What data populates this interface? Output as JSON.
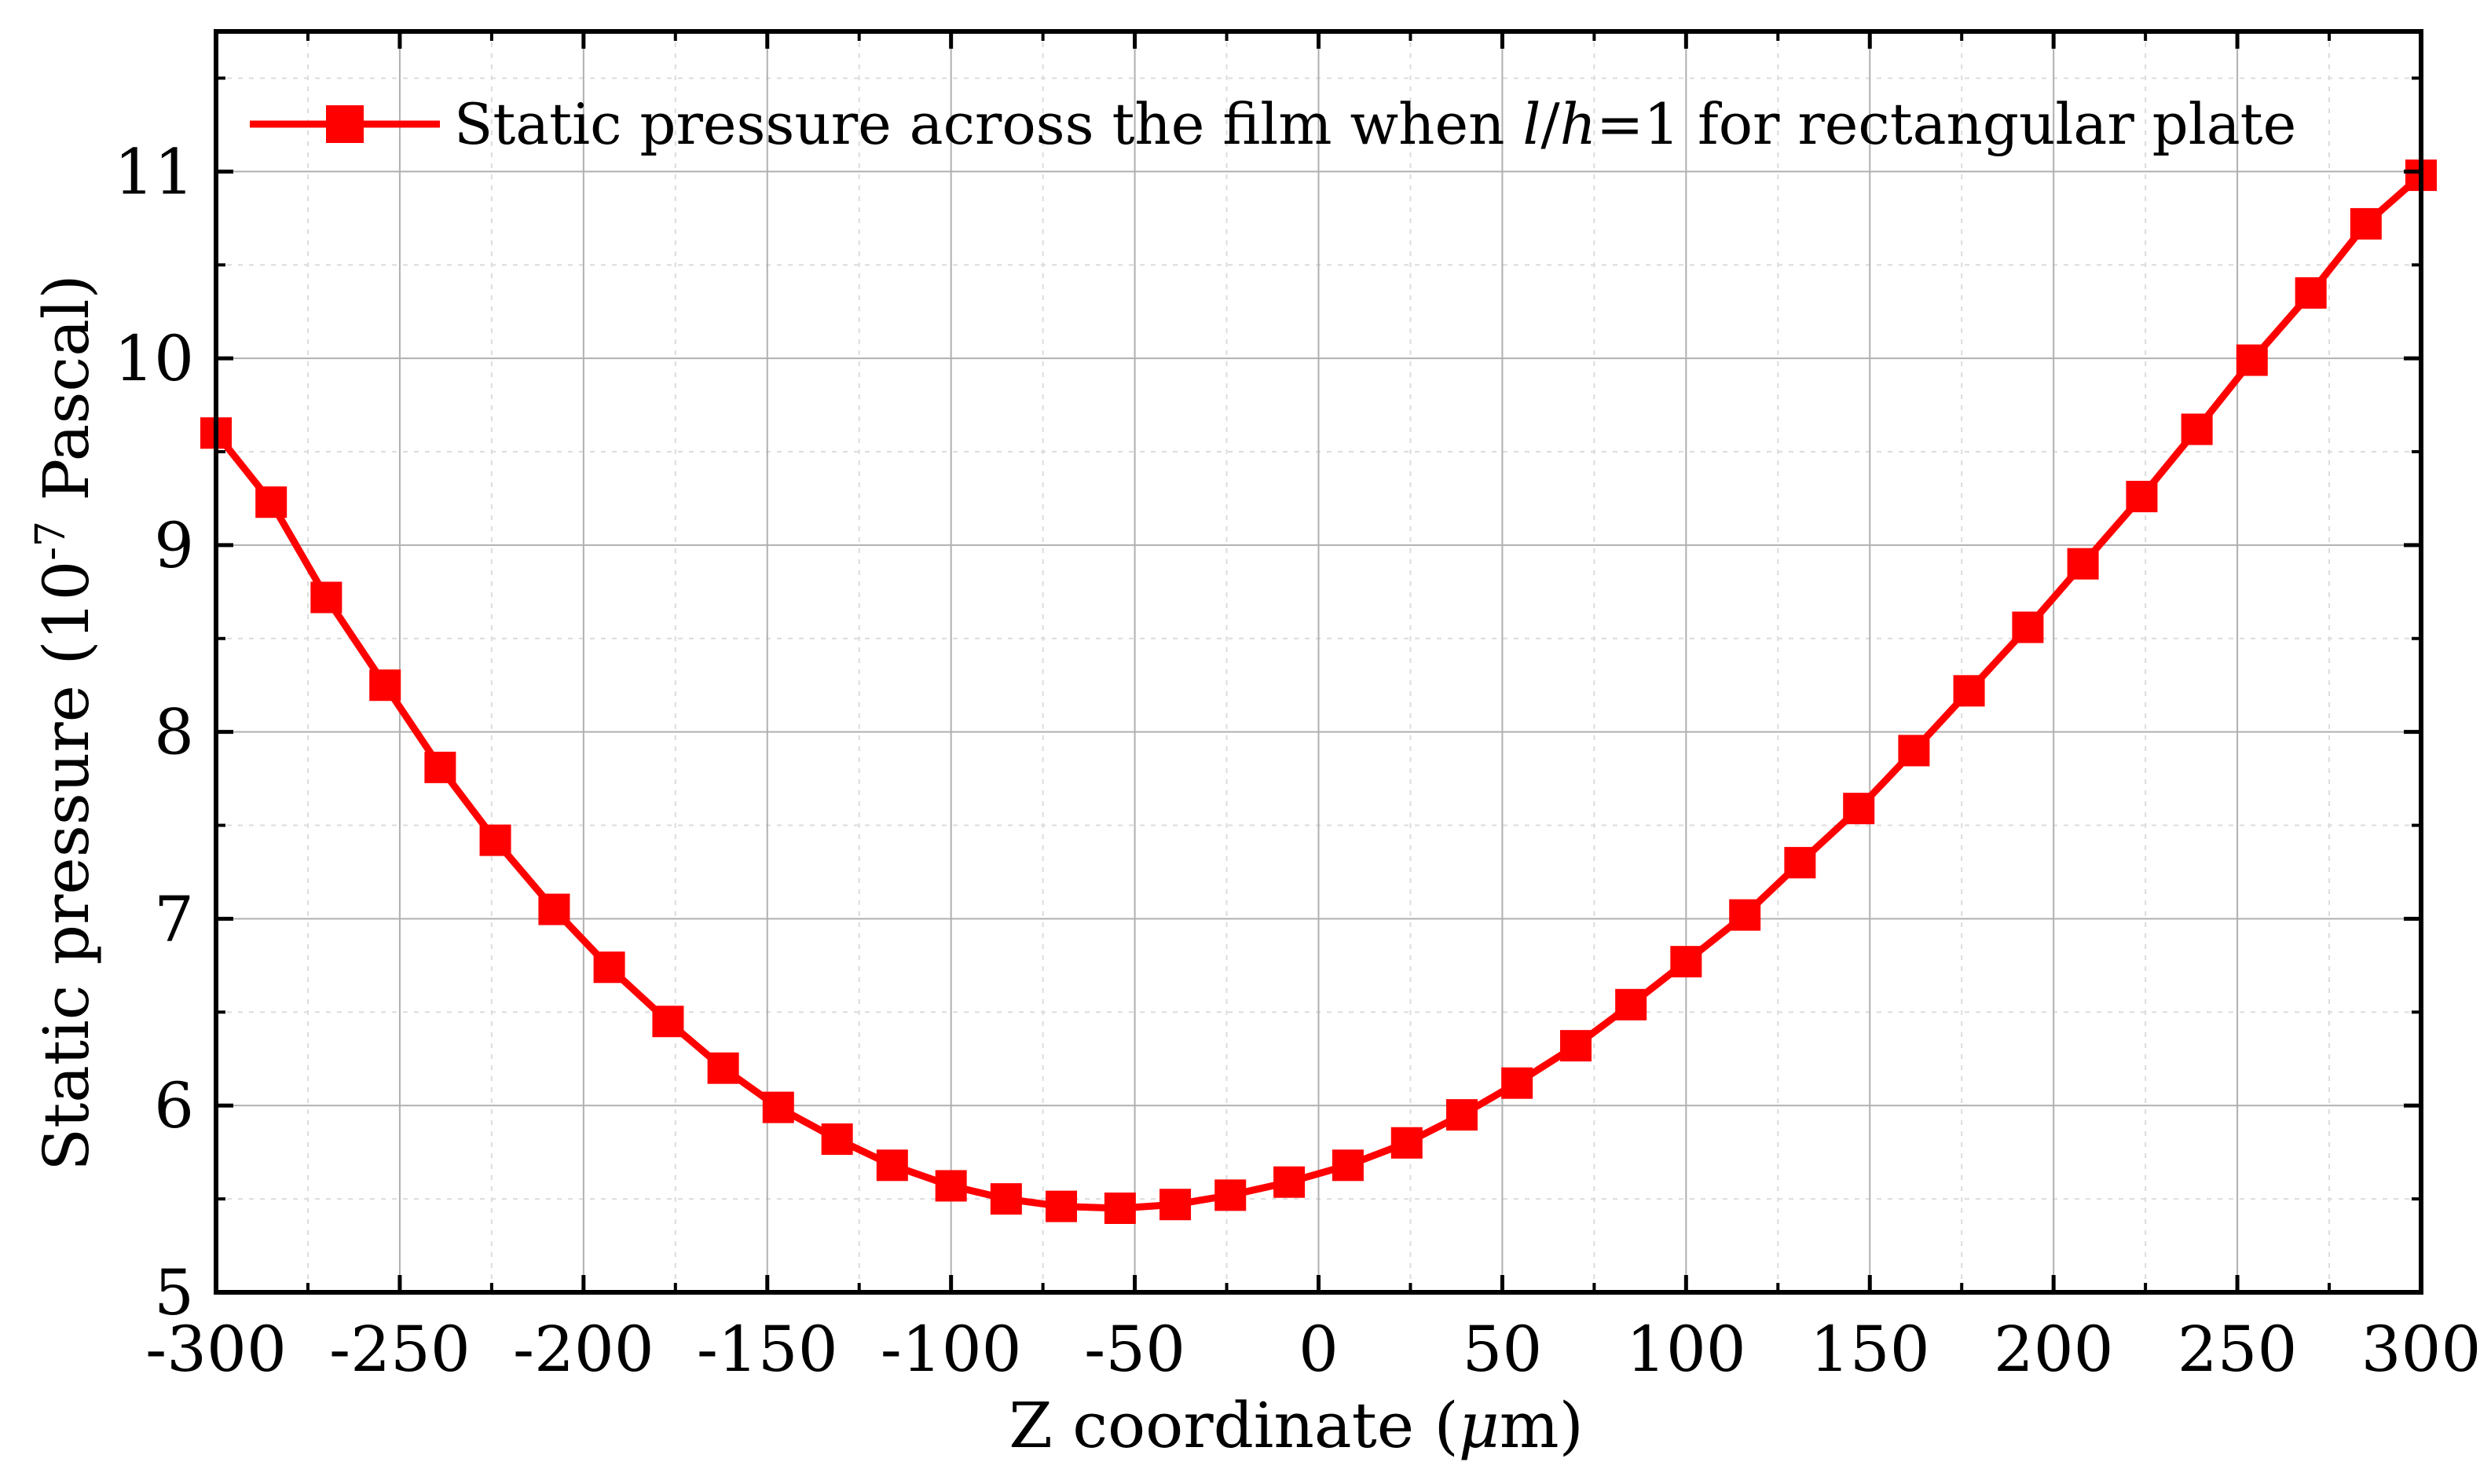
{
  "chart_data": {
    "type": "line",
    "title": "",
    "xlabel": "Z coordinate (μm)",
    "xlabel_parts": {
      "before": "Z coordinate (",
      "italic": "μ",
      "after": "m)"
    },
    "ylabel": "Static pressure (10^-7 Pascal)",
    "ylabel_parts": {
      "before": "Static pressure (10",
      "sup": "-7",
      "after": " Pascal)"
    },
    "xlim": [
      -300,
      300
    ],
    "ylim": [
      5,
      11.75
    ],
    "xticks": [
      -300,
      -250,
      -200,
      -150,
      -100,
      -50,
      0,
      50,
      100,
      150,
      200,
      250,
      300
    ],
    "xtick_labels": [
      "-300",
      "-250",
      "-200",
      "-150",
      "-100",
      "-50",
      "0",
      "50",
      "100",
      "150",
      "200",
      "250",
      "300"
    ],
    "yticks": [
      5,
      6,
      7,
      8,
      9,
      10,
      11
    ],
    "ytick_labels": [
      "5",
      "6",
      "7",
      "8",
      "9",
      "10",
      "11"
    ],
    "grid": true,
    "legend": {
      "placement": "top-left",
      "label": "Static pressure across the film when l/h=1 for rectangular plate",
      "label_parts": [
        "Static pressure across the film when ",
        "l",
        "/",
        "h",
        "=1 for rectangular plate"
      ]
    },
    "series": [
      {
        "name": "Static pressure across the film when l/h=1 for rectangular plate",
        "color": "#ff0000",
        "marker": "square",
        "x": [
          -300,
          -285,
          -270,
          -254,
          -239,
          -224,
          -208,
          -193,
          -177,
          -162,
          -147,
          -131,
          -116,
          -100,
          -85,
          -70,
          -54,
          -39,
          -24,
          -8,
          8,
          24,
          39,
          54,
          70,
          85,
          100,
          116,
          131,
          147,
          162,
          177,
          193,
          208,
          224,
          239,
          254,
          270,
          285,
          300
        ],
        "y": [
          9.6,
          9.23,
          8.72,
          8.25,
          7.81,
          7.42,
          7.05,
          6.74,
          6.45,
          6.2,
          5.99,
          5.82,
          5.68,
          5.57,
          5.5,
          5.46,
          5.45,
          5.47,
          5.52,
          5.59,
          5.68,
          5.8,
          5.95,
          6.12,
          6.32,
          6.54,
          6.77,
          7.02,
          7.3,
          7.59,
          7.9,
          8.22,
          8.56,
          8.9,
          9.26,
          9.62,
          9.99,
          10.35,
          10.72,
          10.98
        ]
      }
    ]
  },
  "colors": {
    "series": "#ff0000",
    "axis": "#000000",
    "major_grid": "#b0b0b0",
    "minor_grid": "#dcdcdc"
  }
}
